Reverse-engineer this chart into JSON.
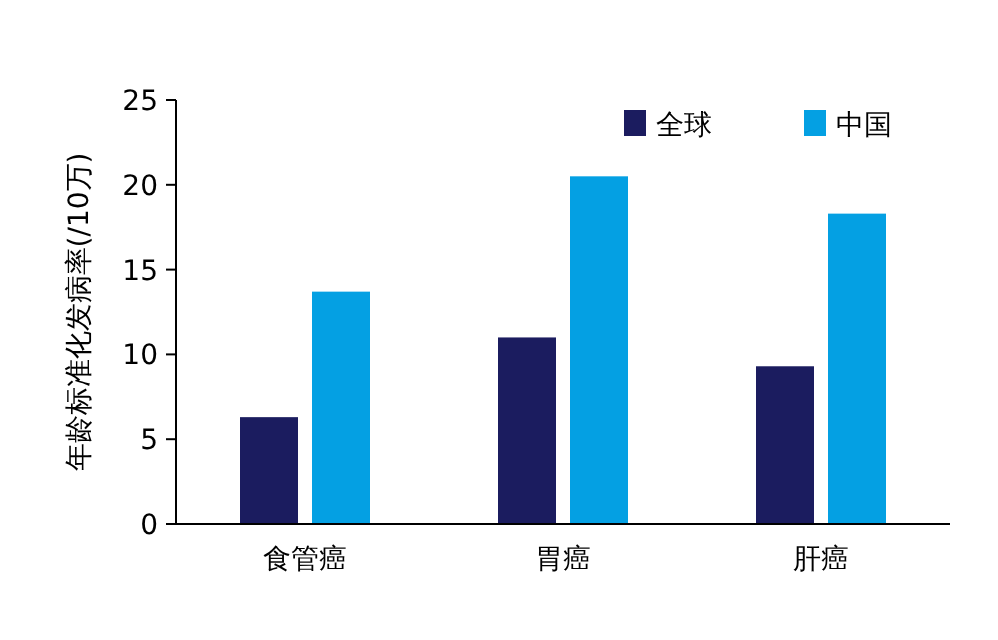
{
  "chart_data": {
    "type": "bar",
    "ylabel": "年龄标准化发病率(/10万)",
    "categories": [
      "食管癌",
      "胃癌",
      "肝癌"
    ],
    "series": [
      {
        "name": "全球",
        "color": "#1b1c5f",
        "values": [
          6.3,
          11.0,
          9.3
        ]
      },
      {
        "name": "中国",
        "color": "#04a0e3",
        "values": [
          13.7,
          20.5,
          18.3
        ]
      }
    ],
    "ylim": [
      0,
      25
    ],
    "yticks": [
      0,
      5,
      10,
      15,
      20,
      25
    ],
    "grid": false,
    "legend": "top right"
  }
}
